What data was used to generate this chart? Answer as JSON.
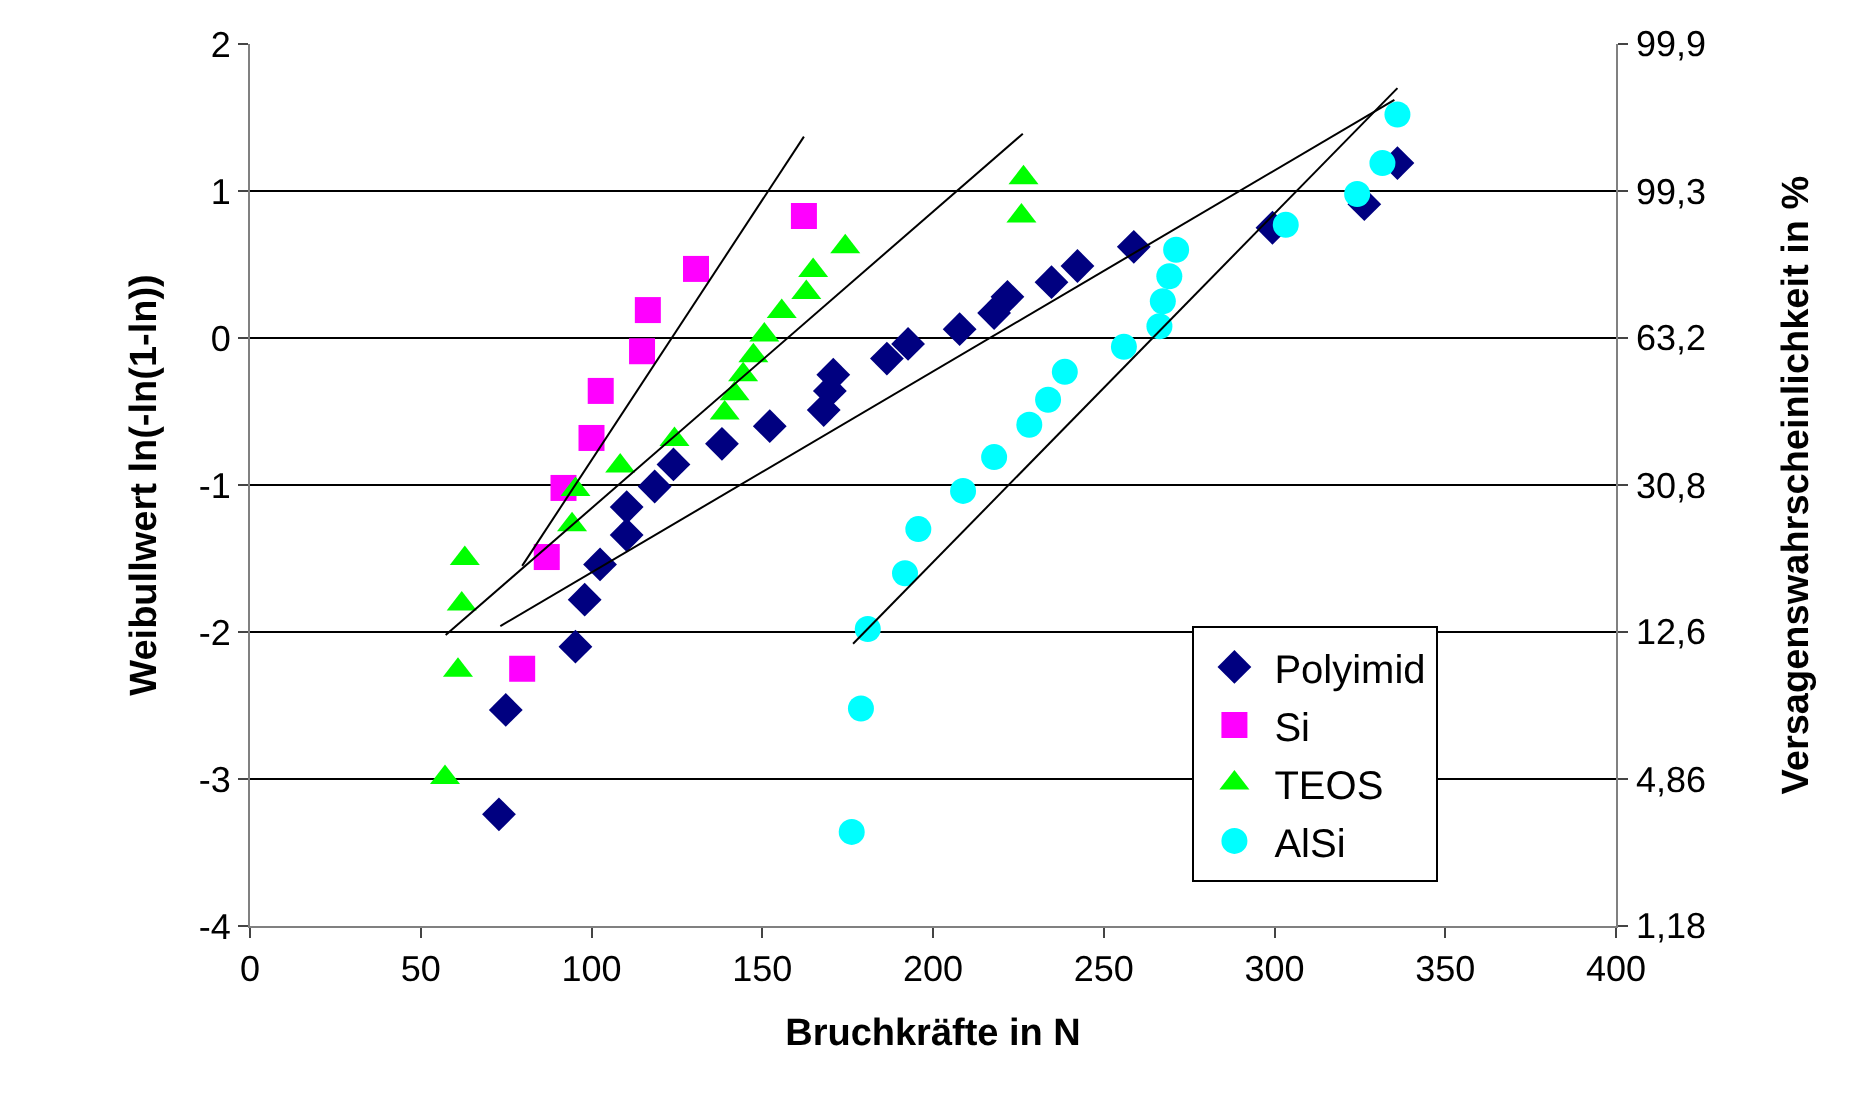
{
  "chart_data": {
    "type": "scatter",
    "xlabel": "Bruchkräfte in N",
    "ylabel": "Weibullwert ln(-ln(1-ln))",
    "y2label": "Versagenswahrscheinlichkeit in %",
    "xlim": [
      0,
      400
    ],
    "xticks": [
      0,
      50,
      100,
      150,
      200,
      250,
      300,
      350,
      400
    ],
    "ylim": [
      -4,
      2
    ],
    "yticks": [
      -4,
      -3,
      -2,
      -1,
      0,
      1,
      2
    ],
    "annotations": [
      "1,18",
      "4,86",
      "12,6",
      "30,8",
      "63,2",
      "99,3",
      "99,9"
    ],
    "grid": "y",
    "legend": "bottom right",
    "series": [
      {
        "name": "Polyimid",
        "color": "#000080",
        "marker": "diamond",
        "x": [
          72.9,
          74.9,
          95.3,
          98.0,
          102.5,
          110.3,
          110.3,
          118.5,
          124.0,
          138.2,
          152.2,
          168.0,
          169.8,
          170.8,
          186.5,
          192.7,
          207.8,
          217.9,
          221.8,
          234.7,
          242.3,
          258.8,
          299.4,
          326.3,
          336.0
        ],
        "values": [
          -3.24,
          -2.53,
          -2.1,
          -1.78,
          -1.54,
          -1.34,
          -1.15,
          -1.01,
          -0.86,
          -0.72,
          -0.6,
          -0.49,
          -0.36,
          -0.25,
          -0.14,
          -0.04,
          0.06,
          0.17,
          0.28,
          0.38,
          0.49,
          0.62,
          0.75,
          0.91,
          1.19
        ]
      },
      {
        "name": "Si",
        "color": "#ff00ff",
        "marker": "square",
        "x": [
          79.7,
          86.9,
          91.8,
          100.0,
          102.7,
          114.8,
          116.5,
          130.6,
          162.2
        ],
        "values": [
          -2.25,
          -1.49,
          -1.02,
          -0.68,
          -0.36,
          -0.09,
          0.19,
          0.47,
          0.83
        ]
      },
      {
        "name": "TEOS",
        "color": "#00ff00",
        "marker": "triangle",
        "x": [
          57.1,
          60.9,
          62.0,
          62.9,
          94.3,
          95.3,
          108.4,
          124.3,
          139.0,
          141.9,
          144.4,
          147.4,
          150.6,
          155.7,
          162.9,
          164.9,
          174.3,
          225.9,
          226.5
        ],
        "values": [
          -2.99,
          -2.26,
          -1.81,
          -1.5,
          -1.27,
          -1.03,
          -0.87,
          -0.69,
          -0.51,
          -0.38,
          -0.25,
          -0.12,
          0.02,
          0.18,
          0.31,
          0.46,
          0.62,
          0.83,
          1.09
        ]
      },
      {
        "name": "AlSi",
        "color": "#00ffff",
        "marker": "circle",
        "x": [
          176.2,
          178.9,
          180.9,
          191.8,
          195.7,
          208.8,
          217.9,
          228.2,
          233.7,
          238.6,
          255.9,
          266.3,
          267.3,
          269.2,
          271.2,
          303.3,
          324.2,
          331.6,
          336.0
        ],
        "values": [
          -3.36,
          -2.52,
          -1.98,
          -1.6,
          -1.3,
          -1.04,
          -0.81,
          -0.59,
          -0.42,
          -0.23,
          -0.06,
          0.08,
          0.25,
          0.42,
          0.6,
          0.77,
          0.98,
          1.19,
          1.52
        ]
      },
      {
        "type": "line",
        "color": "#000000",
        "marker": "none",
        "x": [
          79.7,
          162.2
        ],
        "values": [
          -1.55,
          1.37
        ]
      },
      {
        "type": "line",
        "color": "#000000",
        "marker": "none",
        "x": [
          57.3,
          226.3
        ],
        "values": [
          -2.02,
          1.39
        ]
      },
      {
        "type": "line",
        "color": "#000000",
        "marker": "none",
        "x": [
          73.3,
          335.1
        ],
        "values": [
          -1.96,
          1.62
        ]
      },
      {
        "type": "line",
        "color": "#000000",
        "marker": "none",
        "x": [
          176.6,
          336.0
        ],
        "values": [
          -2.08,
          1.7
        ]
      }
    ]
  }
}
